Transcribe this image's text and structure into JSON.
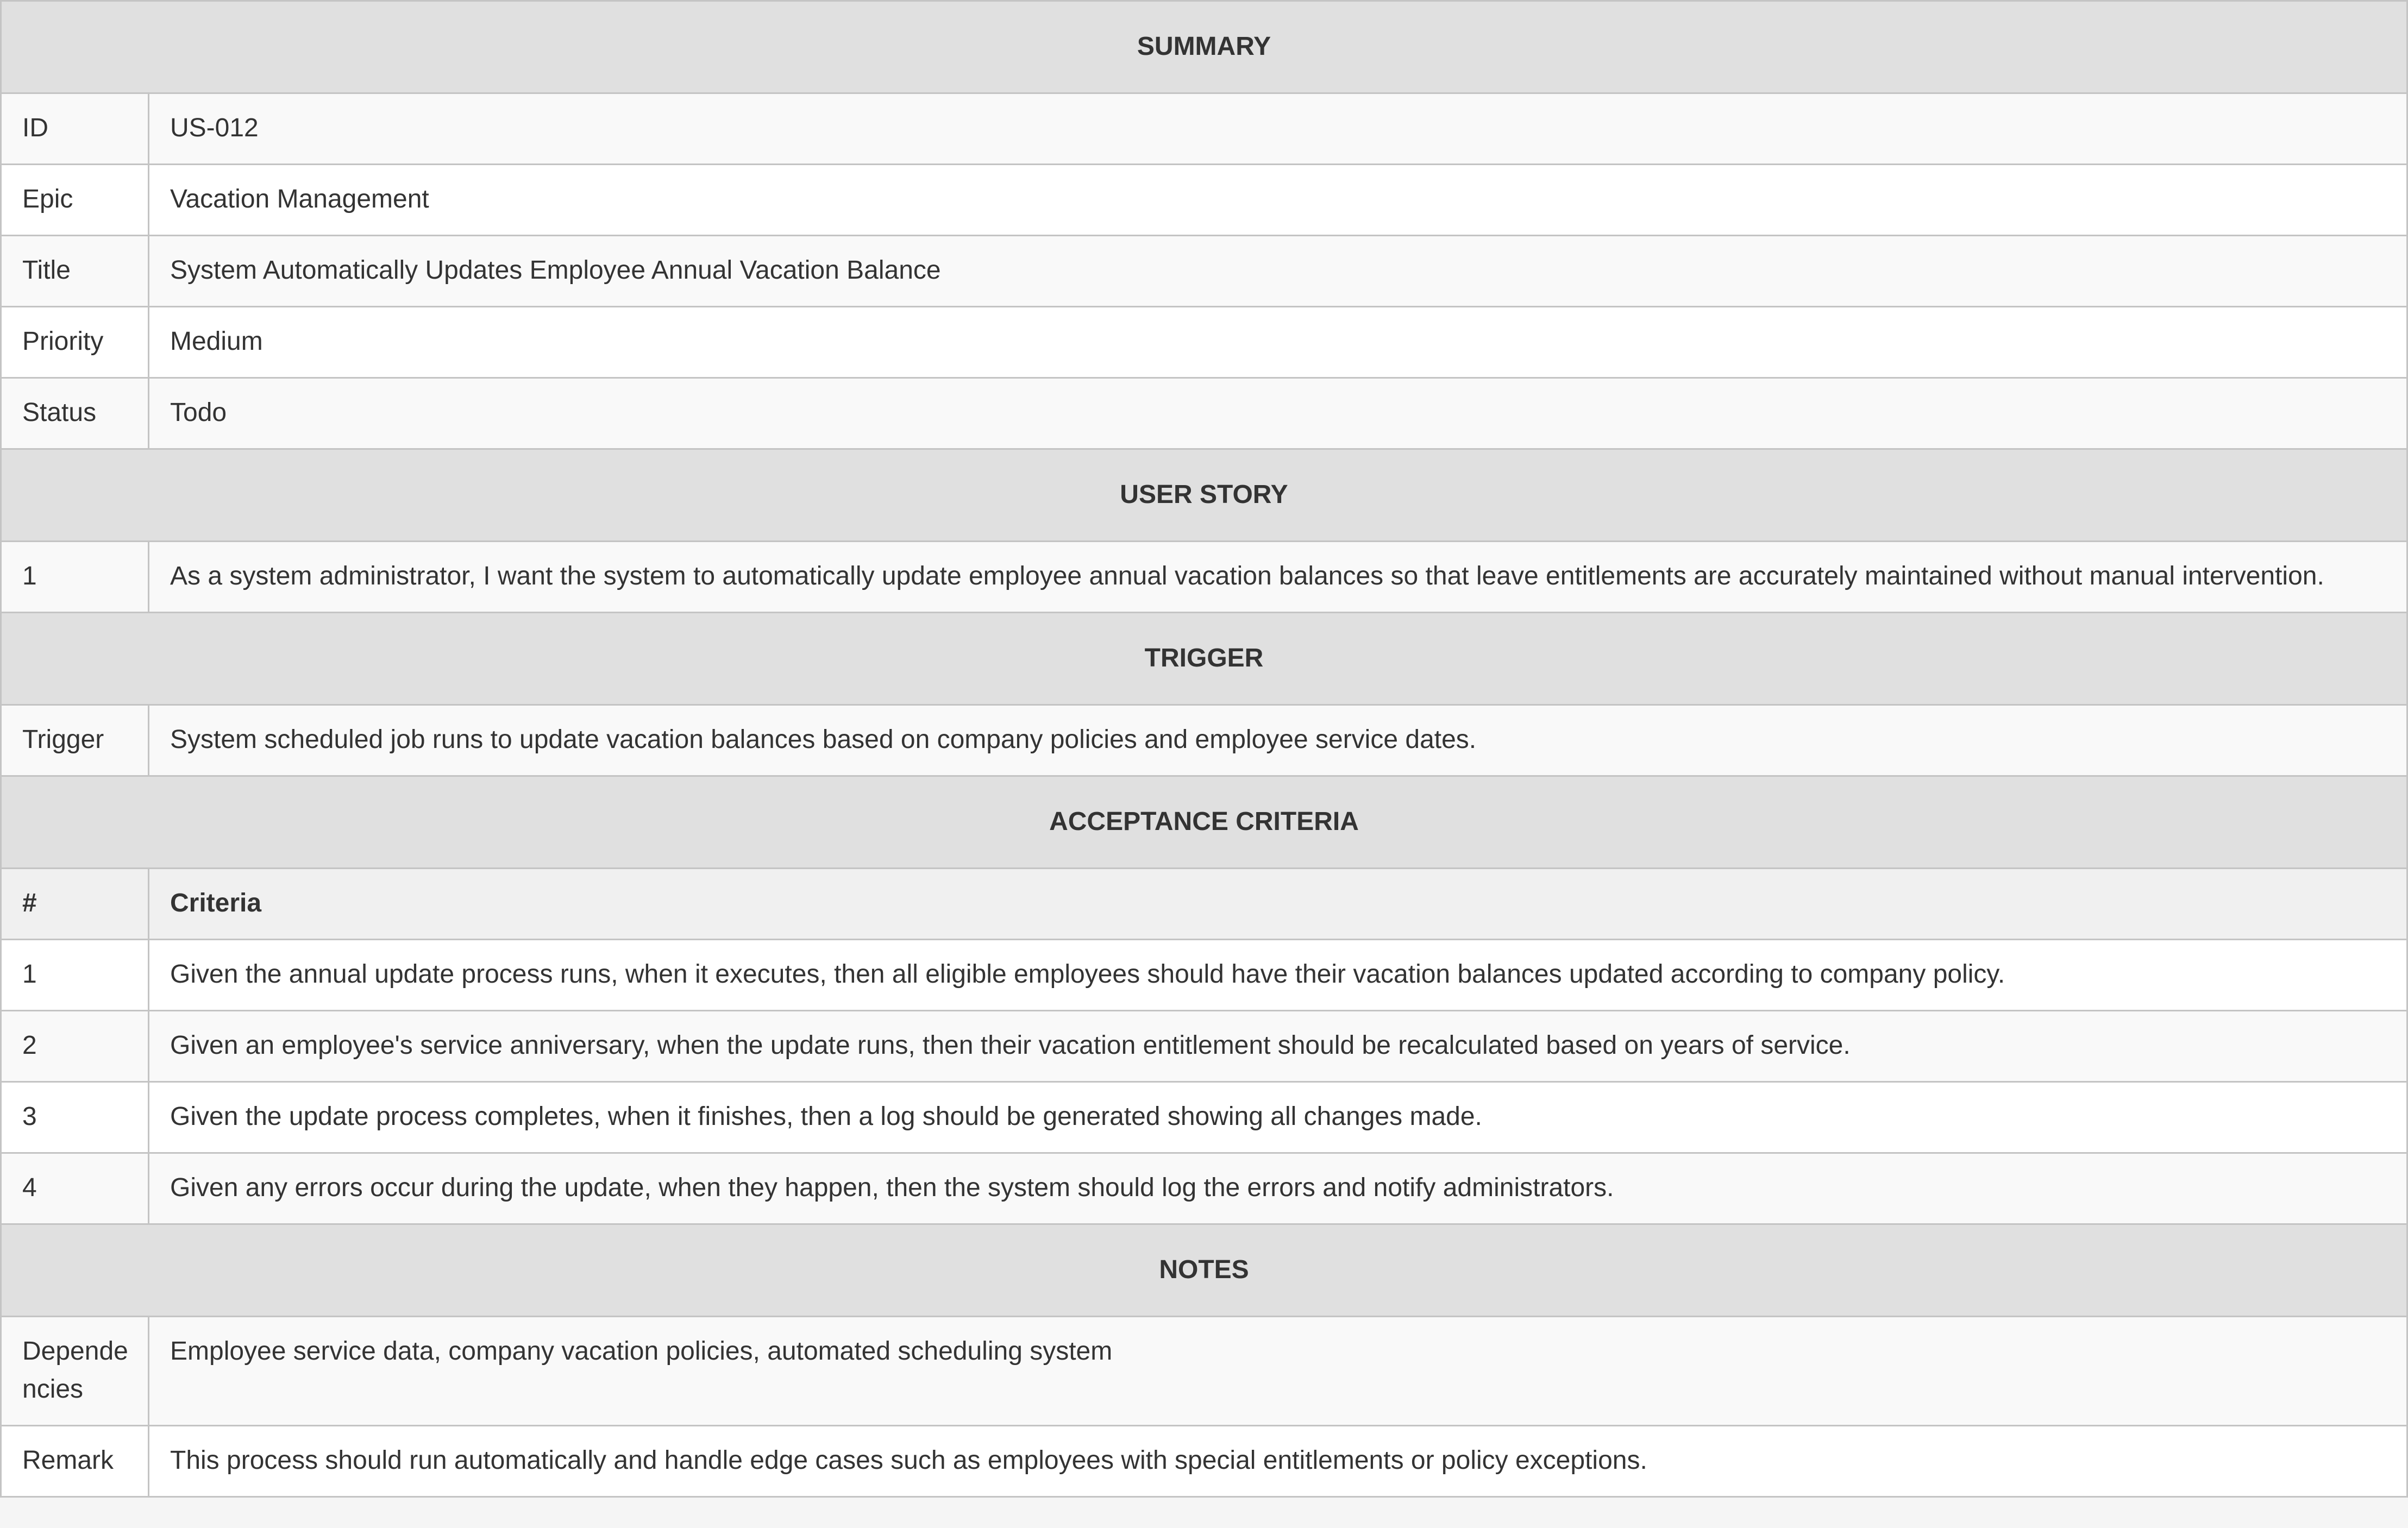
{
  "summary": {
    "heading": "SUMMARY",
    "rows": [
      {
        "label": "ID",
        "value": "US-012"
      },
      {
        "label": "Epic",
        "value": "Vacation Management"
      },
      {
        "label": "Title",
        "value": "System Automatically Updates Employee Annual Vacation Balance"
      },
      {
        "label": "Priority",
        "value": "Medium"
      },
      {
        "label": "Status",
        "value": "Todo"
      }
    ]
  },
  "user_story": {
    "heading": "USER STORY",
    "rows": [
      {
        "label": "1",
        "value": "As a system administrator, I want the system to automatically update employee annual vacation balances so that leave entitlements are accurately maintained without manual intervention."
      }
    ]
  },
  "trigger": {
    "heading": "TRIGGER",
    "rows": [
      {
        "label": "Trigger",
        "value": "System scheduled job runs to update vacation balances based on company policies and employee service dates."
      }
    ]
  },
  "acceptance_criteria": {
    "heading": "ACCEPTANCE CRITERIA",
    "columns": [
      "#",
      "Criteria"
    ],
    "rows": [
      {
        "label": "1",
        "value": "Given the annual update process runs, when it executes, then all eligible employees should have their vacation balances updated according to company policy."
      },
      {
        "label": "2",
        "value": "Given an employee's service anniversary, when the update runs, then their vacation entitlement should be recalculated based on years of service."
      },
      {
        "label": "3",
        "value": "Given the update process completes, when it finishes, then a log should be generated showing all changes made."
      },
      {
        "label": "4",
        "value": "Given any errors occur during the update, when they happen, then the system should log the errors and notify administrators."
      }
    ]
  },
  "notes": {
    "heading": "NOTES",
    "rows": [
      {
        "label": "Dependencies",
        "value": "Employee service data, company vacation policies, automated scheduling system"
      },
      {
        "label": "Remark",
        "value": "This process should run automatically and handle edge cases such as employees with special entitlements or policy exceptions."
      }
    ]
  },
  "colors": {
    "section_bg": "#e0e0e0",
    "column_header_bg": "#f0f0f0",
    "stripe_bg": "#f9f9f9",
    "border": "#c4c4c4",
    "text": "#333333"
  }
}
